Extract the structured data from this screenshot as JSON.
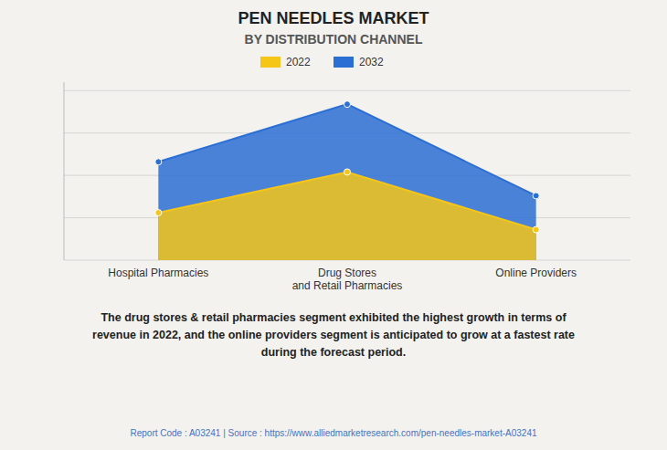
{
  "chart_data": {
    "type": "area",
    "title": "PEN NEEDLES MARKET",
    "subtitle": "BY DISTRIBUTION CHANNEL",
    "categories": [
      "Hospital Pharmacies",
      "Drug Stores\nand Retail Pharmacies",
      "Online Providers"
    ],
    "series": [
      {
        "name": "2022",
        "color": "#F5C518",
        "values": [
          0.28,
          0.52,
          0.18
        ]
      },
      {
        "name": "2032",
        "color": "#2B6FD4",
        "values": [
          0.58,
          0.92,
          0.38
        ]
      }
    ],
    "ylim": [
      0,
      1.05
    ],
    "yticks": [
      0,
      0.25,
      0.5,
      0.75,
      1
    ],
    "grid": true,
    "stacked": false,
    "tick_labels": "x",
    "legend": "top",
    "annotations": [
      "The drug stores & retail pharmacies segment exhibited the highest growth in terms of\nrevenue in 2022, and the online providers segment is anticipated to grow at a fastest rate\nduring the forecast period.",
      "Report Code : A03241  |  Source : https://www.alliedmarketresearch.com/pen-needles-market-A03241"
    ]
  }
}
